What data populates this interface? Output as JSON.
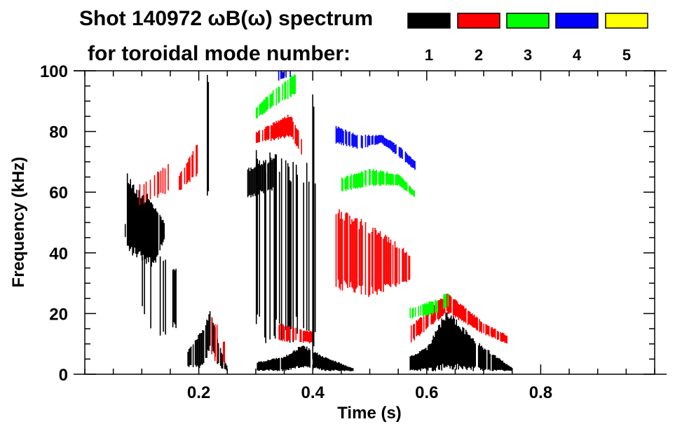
{
  "chart_data": {
    "type": "heatmap",
    "title_line1": "Shot 140972 ωB(ω) spectrum",
    "title_line2": "for toroidal mode number:",
    "xlabel": "Time (s)",
    "ylabel": "Frequency (kHz)",
    "xlim": [
      0,
      1.0
    ],
    "ylim": [
      0,
      100
    ],
    "xticks": [
      0.2,
      0.4,
      0.6,
      0.8
    ],
    "xtick_labels": [
      "0.2",
      "0.4",
      "0.6",
      "0.8"
    ],
    "xminor_step": 0.05,
    "yticks": [
      0,
      20,
      40,
      60,
      80,
      100
    ],
    "ytick_labels": [
      "0",
      "20",
      "40",
      "60",
      "80",
      "100"
    ],
    "yminor_step": 5,
    "grid": false,
    "legend_position": "top-right",
    "legend": [
      {
        "mode": "1",
        "color": "#000000"
      },
      {
        "mode": "2",
        "color": "#ff0000"
      },
      {
        "mode": "3",
        "color": "#00ff00"
      },
      {
        "mode": "4",
        "color": "#0000ff"
      },
      {
        "mode": "5",
        "color": "#ffff00"
      }
    ],
    "regions": [
      {
        "mode": 1,
        "t": [
          0.07,
          0.09,
          0.12,
          0.14
        ],
        "lo": [
          40,
          38,
          35,
          45
        ],
        "hi": [
          68,
          62,
          58,
          50
        ],
        "density": 0.95
      },
      {
        "mode": 1,
        "t": [
          0.1,
          0.13,
          0.16
        ],
        "lo": [
          20,
          10,
          15
        ],
        "hi": [
          40,
          40,
          35
        ],
        "density": 0.35
      },
      {
        "mode": 1,
        "t": [
          0.18,
          0.205,
          0.22,
          0.235,
          0.25
        ],
        "lo": [
          2,
          2,
          8,
          2,
          1
        ],
        "hi": [
          8,
          15,
          22,
          10,
          2
        ],
        "density": 0.85
      },
      {
        "mode": 1,
        "t": [
          0.285,
          0.33
        ],
        "lo": [
          58,
          60
        ],
        "hi": [
          68,
          72
        ],
        "density": 0.9
      },
      {
        "mode": 1,
        "t": [
          0.3,
          0.41
        ],
        "lo": [
          10,
          10
        ],
        "hi": [
          75,
          70
        ],
        "density": 0.4
      },
      {
        "mode": 1,
        "t": [
          0.3,
          0.35,
          0.38,
          0.42,
          0.47
        ],
        "lo": [
          1,
          1,
          2,
          1,
          1
        ],
        "hi": [
          4,
          6,
          10,
          6,
          2
        ],
        "density": 0.95
      },
      {
        "mode": 1,
        "t": [
          0.57,
          0.6,
          0.635,
          0.68,
          0.75
        ],
        "lo": [
          1,
          1,
          1,
          1,
          1
        ],
        "hi": [
          6,
          9,
          22,
          12,
          2
        ],
        "density": 0.95
      },
      {
        "mode": 1,
        "t": [
          0.214,
          0.217
        ],
        "lo": [
          55,
          55
        ],
        "hi": [
          100,
          100
        ],
        "density": 1
      },
      {
        "mode": 1,
        "t": [
          0.399,
          0.402
        ],
        "lo": [
          0,
          0
        ],
        "hi": [
          100,
          100
        ],
        "density": 1
      },
      {
        "mode": 2,
        "t": [
          0.09,
          0.15
        ],
        "lo": [
          55,
          60
        ],
        "hi": [
          62,
          70
        ],
        "density": 0.3
      },
      {
        "mode": 2,
        "t": [
          0.165,
          0.2
        ],
        "lo": [
          60,
          66
        ],
        "hi": [
          66,
          78
        ],
        "density": 0.6
      },
      {
        "mode": 2,
        "t": [
          0.3,
          0.36,
          0.38
        ],
        "lo": [
          76,
          78,
          72
        ],
        "hi": [
          80,
          86,
          78
        ],
        "density": 0.8
      },
      {
        "mode": 2,
        "t": [
          0.44,
          0.5,
          0.57
        ],
        "lo": [
          28,
          25,
          30
        ],
        "hi": [
          55,
          50,
          40
        ],
        "density": 0.8
      },
      {
        "mode": 2,
        "t": [
          0.57,
          0.635,
          0.7,
          0.74
        ],
        "lo": [
          10,
          20,
          13,
          10
        ],
        "hi": [
          16,
          27,
          17,
          13
        ],
        "density": 0.8
      },
      {
        "mode": 2,
        "t": [
          0.34,
          0.4
        ],
        "lo": [
          11,
          10
        ],
        "hi": [
          17,
          14
        ],
        "density": 0.7
      },
      {
        "mode": 2,
        "t": [
          0.22,
          0.25
        ],
        "lo": [
          5,
          2
        ],
        "hi": [
          22,
          8
        ],
        "density": 0.4
      },
      {
        "mode": 3,
        "t": [
          0.3,
          0.33,
          0.37
        ],
        "lo": [
          84,
          88,
          92
        ],
        "hi": [
          88,
          94,
          100
        ],
        "density": 0.8
      },
      {
        "mode": 3,
        "t": [
          0.45,
          0.5,
          0.55,
          0.58
        ],
        "lo": [
          60,
          62,
          62,
          58
        ],
        "hi": [
          65,
          68,
          66,
          60
        ],
        "density": 0.85
      },
      {
        "mode": 3,
        "t": [
          0.57,
          0.62,
          0.64
        ],
        "lo": [
          18,
          20,
          22
        ],
        "hi": [
          22,
          25,
          28
        ],
        "density": 0.7
      },
      {
        "mode": 4,
        "t": [
          0.44,
          0.48,
          0.52,
          0.56,
          0.58
        ],
        "lo": [
          76,
          74,
          76,
          70,
          67
        ],
        "hi": [
          82,
          79,
          79,
          74,
          70
        ],
        "density": 0.8
      },
      {
        "mode": 4,
        "t": [
          0.33,
          0.36
        ],
        "lo": [
          96,
          98
        ],
        "hi": [
          100,
          100
        ],
        "density": 0.3
      }
    ]
  }
}
